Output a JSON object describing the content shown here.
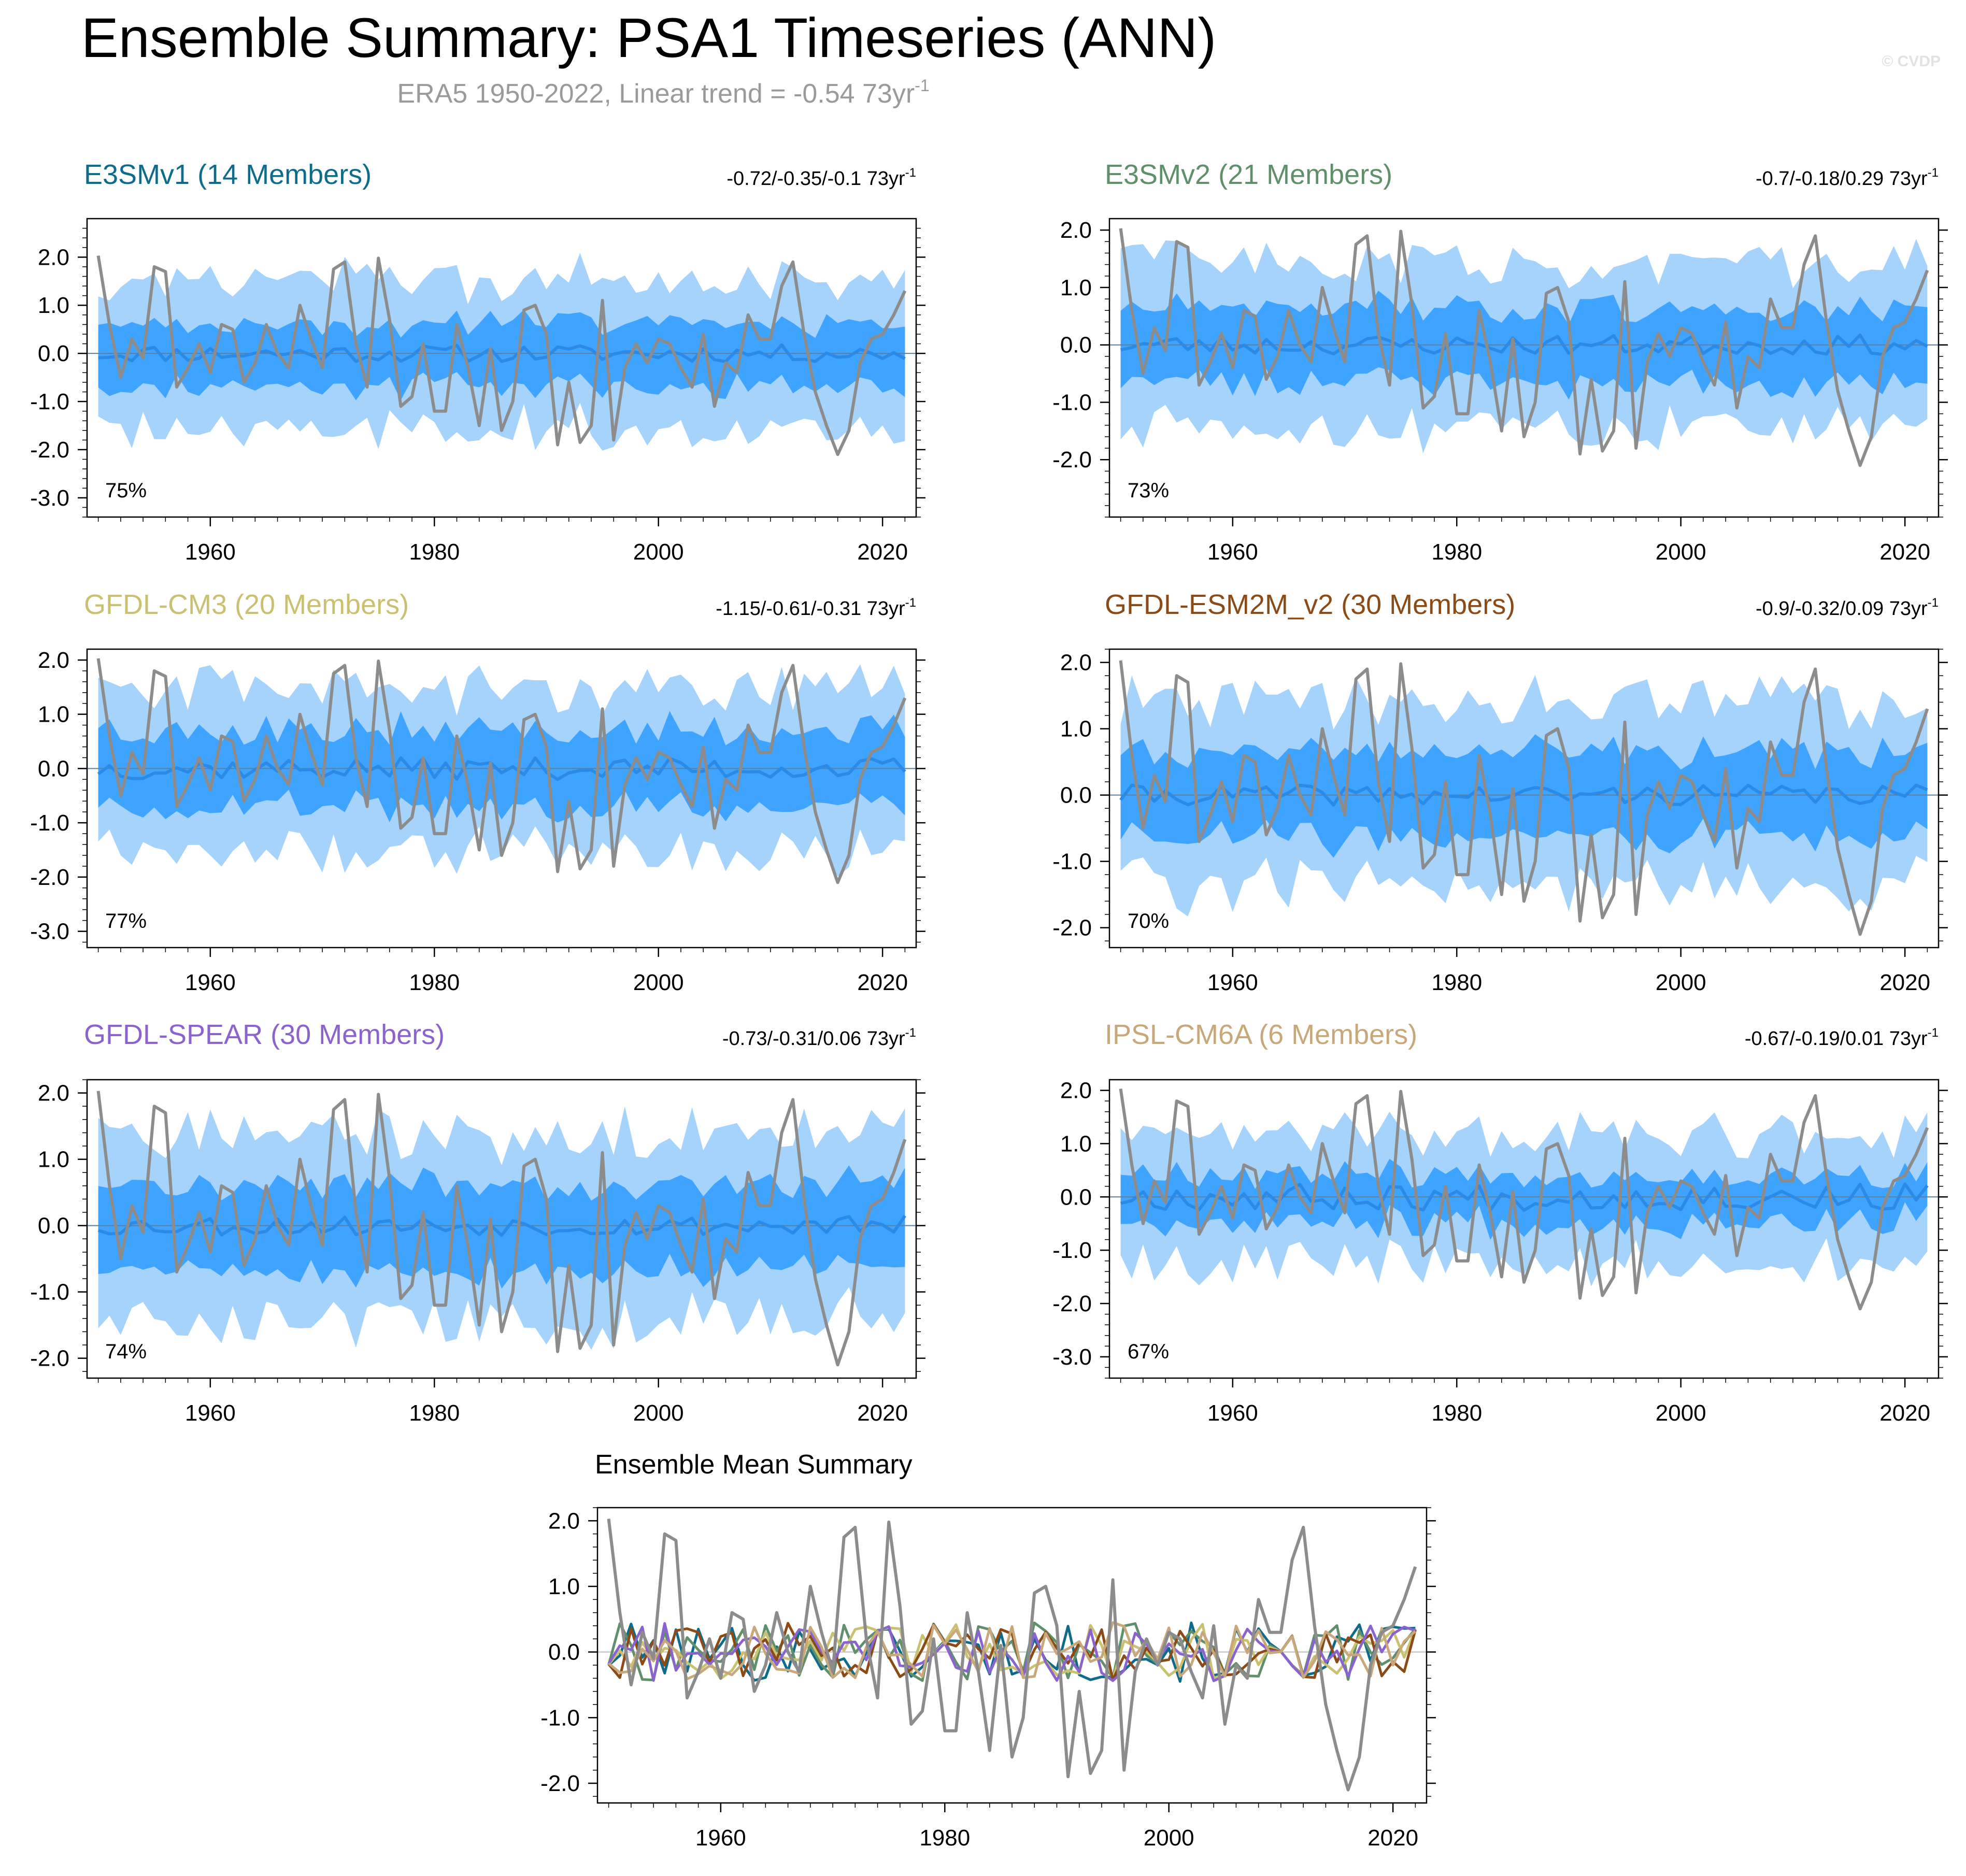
{
  "header": {
    "title": "Ensemble Summary: PSA1 Timeseries (ANN)",
    "subtitle": "ERA5 1950-2022, Linear trend = -0.54 73yr",
    "subtitle_sup": "-1",
    "copyright": "© CVDP"
  },
  "colors": {
    "outer_band": "#a6d3fb",
    "inner_band": "#3ea4ff",
    "ensemble_mean": "#2a8ae6",
    "observations": "#8c8c8c",
    "frame": "#000000"
  },
  "chart_data": [
    {
      "type": "area",
      "title": "E3SMv1 (14 Members)",
      "title_color": "#0f6b8a",
      "trend_text": "-0.72/-0.35/-0.1 73yr",
      "trend_sup": "-1",
      "percent": "75%",
      "ylim": [
        -3.4,
        2.8
      ],
      "yticks": [
        2.0,
        1.0,
        0.0,
        -1.0,
        -2.0,
        -3.0
      ],
      "ytick_labels": [
        "2.0",
        "1.0",
        "0.0",
        "-1.0",
        "-2.0",
        "-3.0"
      ],
      "xlim": [
        1949,
        2023
      ],
      "xticks": [
        1960,
        1980,
        2000,
        2020
      ],
      "xtick_labels": [
        "1960",
        "1980",
        "2000",
        "2020"
      ],
      "seed": 11,
      "mean_amp": 0.18,
      "inner_half": 0.65,
      "outer_half": 1.55
    },
    {
      "type": "area",
      "title": "E3SMv2 (21 Members)",
      "title_color": "#5f8f6b",
      "trend_text": "-0.7/-0.18/0.29 73yr",
      "trend_sup": "-1",
      "percent": "73%",
      "ylim": [
        -3.0,
        2.2
      ],
      "yticks": [
        2.0,
        1.0,
        0.0,
        -1.0,
        -2.0
      ],
      "ytick_labels": [
        "2.0",
        "1.0",
        "0.0",
        "-1.0",
        "-2.0"
      ],
      "xlim": [
        1949,
        2023
      ],
      "xticks": [
        1960,
        1980,
        2000,
        2020
      ],
      "xtick_labels": [
        "1960",
        "1980",
        "2000",
        "2020"
      ],
      "seed": 23,
      "mean_amp": 0.17,
      "inner_half": 0.65,
      "outer_half": 1.45
    },
    {
      "type": "area",
      "title": "GFDL-CM3 (20 Members)",
      "title_color": "#c9c070",
      "trend_text": "-1.15/-0.61/-0.31 73yr",
      "trend_sup": "-1",
      "percent": "77%",
      "ylim": [
        -3.3,
        2.2
      ],
      "yticks": [
        2.0,
        1.0,
        0.0,
        -1.0,
        -2.0,
        -3.0
      ],
      "ytick_labels": [
        "2.0",
        "1.0",
        "0.0",
        "-1.0",
        "-2.0",
        "-3.0"
      ],
      "xlim": [
        1949,
        2023
      ],
      "xticks": [
        1960,
        1980,
        2000,
        2020
      ],
      "xtick_labels": [
        "1960",
        "1980",
        "2000",
        "2020"
      ],
      "seed": 37,
      "mean_amp": 0.2,
      "inner_half": 0.7,
      "outer_half": 1.5
    },
    {
      "type": "area",
      "title": "GFDL-ESM2M_v2 (30 Members)",
      "title_color": "#8b4a16",
      "trend_text": "-0.9/-0.32/0.09 73yr",
      "trend_sup": "-1",
      "percent": "70%",
      "ylim": [
        -2.3,
        2.2
      ],
      "yticks": [
        2.0,
        1.0,
        0.0,
        -1.0,
        -2.0
      ],
      "ytick_labels": [
        "2.0",
        "1.0",
        "0.0",
        "-1.0",
        "-2.0"
      ],
      "xlim": [
        1949,
        2023
      ],
      "xticks": [
        1960,
        1980,
        2000,
        2020
      ],
      "xtick_labels": [
        "1960",
        "1980",
        "2000",
        "2020"
      ],
      "seed": 41,
      "mean_amp": 0.15,
      "inner_half": 0.65,
      "outer_half": 1.4
    },
    {
      "type": "area",
      "title": "GFDL-SPEAR (30 Members)",
      "title_color": "#8a63cf",
      "trend_text": "-0.73/-0.31/0.06 73yr",
      "trend_sup": "-1",
      "percent": "74%",
      "ylim": [
        -2.3,
        2.2
      ],
      "yticks": [
        2.0,
        1.0,
        0.0,
        -1.0,
        -2.0
      ],
      "ytick_labels": [
        "2.0",
        "1.0",
        "0.0",
        "-1.0",
        "-2.0"
      ],
      "xlim": [
        1949,
        2023
      ],
      "xticks": [
        1960,
        1980,
        2000,
        2020
      ],
      "xtick_labels": [
        "1960",
        "1980",
        "2000",
        "2020"
      ],
      "seed": 53,
      "mean_amp": 0.15,
      "inner_half": 0.65,
      "outer_half": 1.4
    },
    {
      "type": "area",
      "title": "IPSL-CM6A (6 Members)",
      "title_color": "#c8a77a",
      "trend_text": "-0.67/-0.19/0.01 73yr",
      "trend_sup": "-1",
      "percent": "67%",
      "ylim": [
        -3.4,
        2.2
      ],
      "yticks": [
        2.0,
        1.0,
        0.0,
        -1.0,
        -2.0,
        -3.0
      ],
      "ytick_labels": [
        "2.0",
        "1.0",
        "0.0",
        "-1.0",
        "-2.0",
        "-3.0"
      ],
      "xlim": [
        1949,
        2023
      ],
      "xticks": [
        1960,
        1980,
        2000,
        2020
      ],
      "xtick_labels": [
        "1960",
        "1980",
        "2000",
        "2020"
      ],
      "seed": 67,
      "mean_amp": 0.25,
      "inner_half": 0.45,
      "outer_half": 1.2
    },
    {
      "type": "line",
      "title": "Ensemble Mean Summary",
      "ylim": [
        -2.3,
        2.2
      ],
      "yticks": [
        2.0,
        1.0,
        0.0,
        -1.0,
        -2.0
      ],
      "ytick_labels": [
        "2.0",
        "1.0",
        "0.0",
        "-1.0",
        "-2.0"
      ],
      "xlim": [
        1949,
        2023
      ],
      "xticks": [
        1960,
        1980,
        2000,
        2020
      ],
      "xtick_labels": [
        "1960",
        "1980",
        "2000",
        "2020"
      ],
      "series_colors": [
        "#0f6b8a",
        "#5f8f6b",
        "#c9c070",
        "#8b4a16",
        "#8a63cf",
        "#c8a77a"
      ]
    }
  ],
  "observations": {
    "name": "ERA5",
    "years": [
      1950,
      1951,
      1952,
      1953,
      1954,
      1955,
      1956,
      1957,
      1958,
      1959,
      1960,
      1961,
      1962,
      1963,
      1964,
      1965,
      1966,
      1967,
      1968,
      1969,
      1970,
      1971,
      1972,
      1973,
      1974,
      1975,
      1976,
      1977,
      1978,
      1979,
      1980,
      1981,
      1982,
      1983,
      1984,
      1985,
      1986,
      1987,
      1988,
      1989,
      1990,
      1991,
      1992,
      1993,
      1994,
      1995,
      1996,
      1997,
      1998,
      1999,
      2000,
      2001,
      2002,
      2003,
      2004,
      2005,
      2006,
      2007,
      2008,
      2009,
      2010,
      2011,
      2012,
      2013,
      2014,
      2015,
      2016,
      2017,
      2018,
      2019,
      2020,
      2021,
      2022
    ],
    "values": [
      2.03,
      0.6,
      -0.5,
      0.3,
      -0.1,
      1.8,
      1.7,
      -0.7,
      -0.3,
      0.2,
      -0.4,
      0.6,
      0.5,
      -0.6,
      -0.2,
      0.6,
      0.0,
      -0.3,
      1.0,
      0.3,
      -0.3,
      1.75,
      1.9,
      0.2,
      -0.7,
      1.98,
      0.7,
      -1.1,
      -0.9,
      0.2,
      -1.2,
      -1.2,
      0.6,
      -0.3,
      -1.5,
      0.1,
      -1.6,
      -1.0,
      0.9,
      1.0,
      0.4,
      -1.9,
      -0.6,
      -1.85,
      -1.5,
      1.1,
      -1.8,
      -0.3,
      0.2,
      -0.2,
      0.3,
      0.2,
      -0.3,
      -0.7,
      0.4,
      -1.1,
      -0.2,
      -0.4,
      0.8,
      0.3,
      0.3,
      1.4,
      1.9,
      0.4,
      -0.8,
      -1.5,
      -2.1,
      -1.6,
      -0.2,
      0.3,
      0.4,
      0.8,
      1.3
    ]
  }
}
